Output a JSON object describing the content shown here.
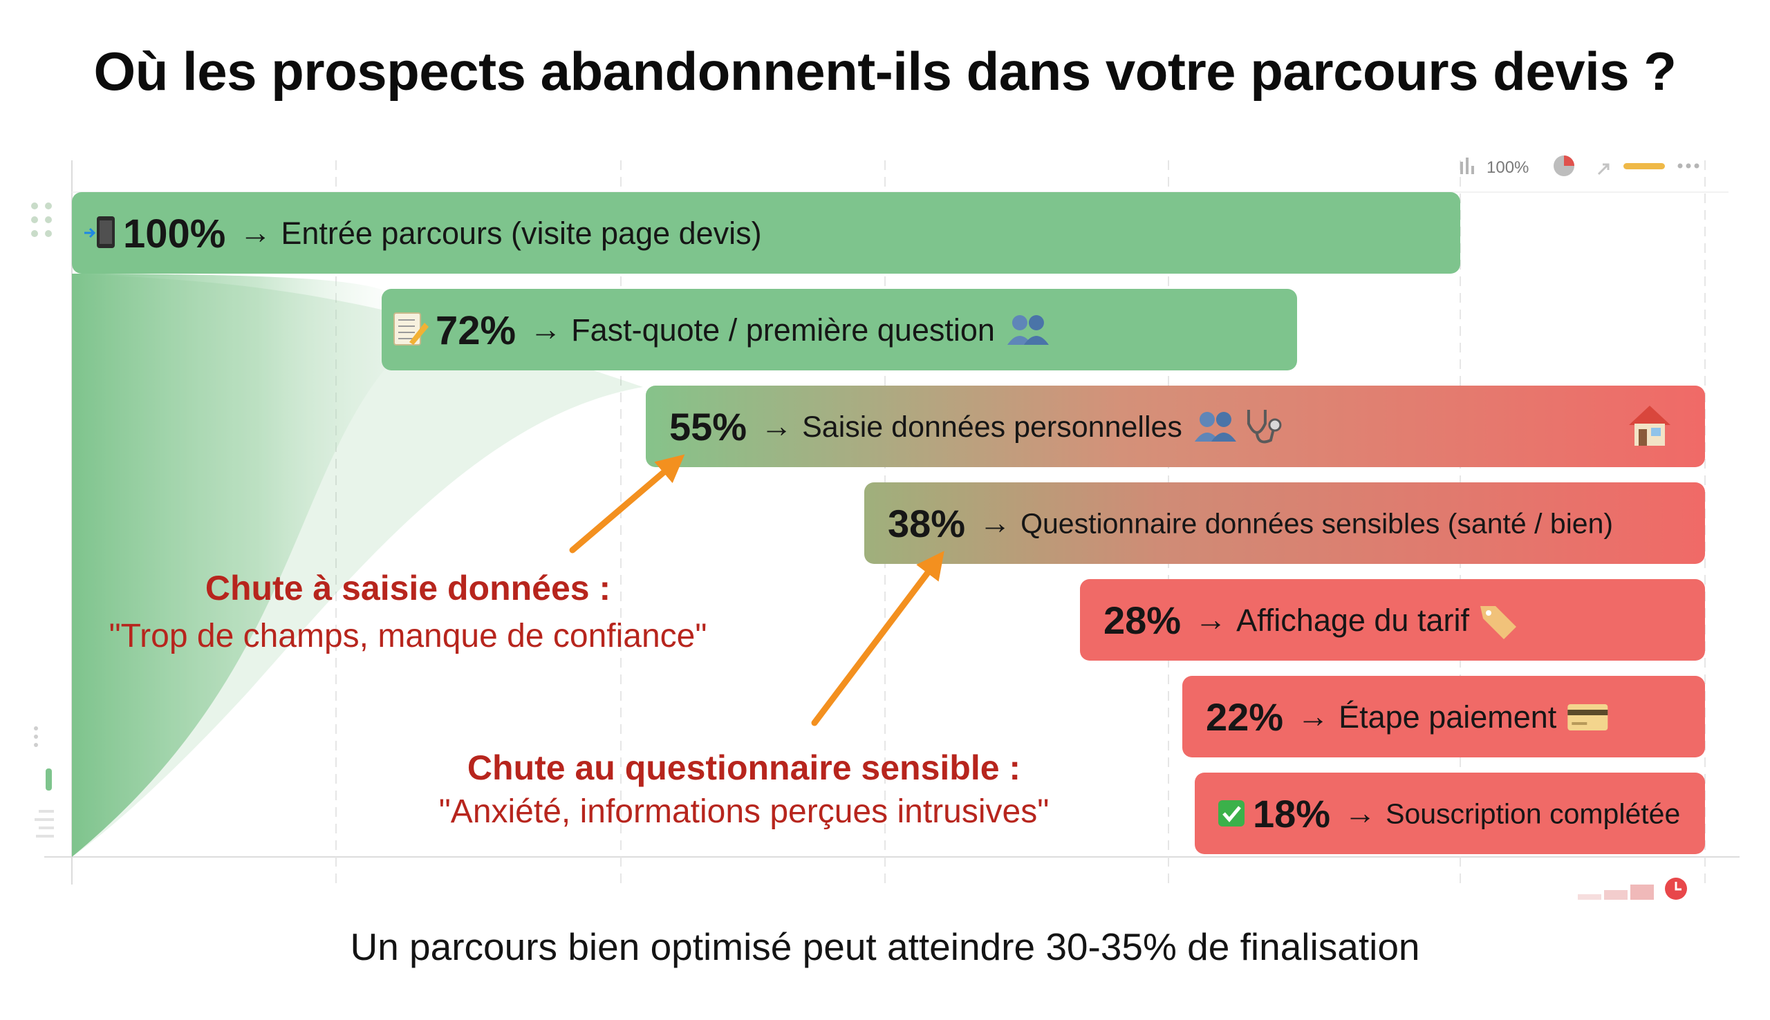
{
  "title": "Où les prospects abandonnent-ils dans votre parcours devis ?",
  "footnote": "Un parcours bien optimisé peut atteindre 30-35% de finalisation",
  "toolbar": {
    "zoom_label": "100%"
  },
  "colors": {
    "green": "#7ec48d",
    "red": "#f06a67",
    "arrow": "#f3901f",
    "annotation": "#b7251d"
  },
  "chart_data": {
    "type": "bar",
    "orientation": "horizontal-funnel",
    "stages": [
      {
        "icon": "mobile-phone-icon",
        "value": 100,
        "value_label": "100%",
        "arrow": "→",
        "label": "Entrée parcours (visite page devis)",
        "icons_after": []
      },
      {
        "icon": "memo-icon",
        "value": 72,
        "value_label": "72%",
        "arrow": "→",
        "label": "Fast-quote / première question",
        "icons_after": [
          "people-icon"
        ]
      },
      {
        "icon": "",
        "value": 55,
        "value_label": "55%",
        "arrow": "→",
        "label": "Saisie données personnelles",
        "icons_after": [
          "people-icon",
          "stethoscope-icon"
        ],
        "icon_right": "house-icon"
      },
      {
        "icon": "",
        "value": 38,
        "value_label": "38%",
        "arrow": "→",
        "label": "Questionnaire données sensibles (santé / bien)",
        "icons_after": []
      },
      {
        "icon": "",
        "value": 28,
        "value_label": "28%",
        "arrow": "→",
        "label": "Affichage du tarif",
        "icons_after": [
          "price-tag-icon"
        ]
      },
      {
        "icon": "",
        "value": 22,
        "value_label": "22%",
        "arrow": "→",
        "label": "Étape paiement",
        "icons_after": [
          "credit-card-icon"
        ]
      },
      {
        "icon": "check-mark-icon",
        "value": 18,
        "value_label": "18%",
        "arrow": "→",
        "label": "Souscription complétée",
        "icons_after": []
      }
    ],
    "annotations": [
      {
        "title": "Chute à saisie données :",
        "quote": "\"Trop de champs, manque de confiance\"",
        "points_to_stage": 2
      },
      {
        "title": "Chute au questionnaire sensible :",
        "quote": "\"Anxiété, informations perçues intrusives\"",
        "points_to_stage": 3
      }
    ],
    "xlim": [
      0,
      100
    ],
    "grid": true,
    "legend": "none"
  }
}
